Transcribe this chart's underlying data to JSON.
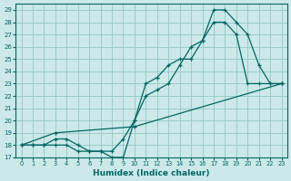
{
  "xlabel": "Humidex (Indice chaleur)",
  "bg_color": "#cce8e8",
  "grid_color": "#99cccc",
  "line_color": "#006666",
  "xlim": [
    -0.5,
    23.5
  ],
  "ylim": [
    17,
    29.5
  ],
  "yticks": [
    17,
    18,
    19,
    20,
    21,
    22,
    23,
    24,
    25,
    26,
    27,
    28,
    29
  ],
  "xticks": [
    0,
    1,
    2,
    3,
    4,
    5,
    6,
    7,
    8,
    9,
    10,
    11,
    12,
    13,
    14,
    15,
    16,
    17,
    18,
    19,
    20,
    21,
    22,
    23
  ],
  "line1_x": [
    0,
    1,
    2,
    3,
    4,
    5,
    6,
    7,
    8,
    9,
    10,
    11,
    12,
    13,
    14,
    15,
    16,
    17,
    18,
    19,
    20,
    21,
    22,
    23
  ],
  "line1_y": [
    18,
    18,
    18,
    18,
    18,
    17.5,
    17.5,
    17.5,
    17,
    17,
    20,
    22,
    22.5,
    23,
    24.5,
    26,
    26.5,
    28,
    28,
    27,
    23,
    23,
    23,
    23
  ],
  "line2_x": [
    0,
    1,
    2,
    3,
    4,
    5,
    6,
    7,
    8,
    9,
    10,
    11,
    12,
    13,
    14,
    15,
    16,
    17,
    18,
    19,
    20,
    21,
    22,
    23
  ],
  "line2_y": [
    18,
    18,
    18,
    18.5,
    18.5,
    18,
    17.5,
    17.5,
    17.5,
    18.5,
    20,
    23,
    23.5,
    24.5,
    25,
    25,
    26.5,
    29,
    29,
    28,
    27,
    24.5,
    23,
    23
  ],
  "line3_x": [
    0,
    3,
    10,
    23
  ],
  "line3_y": [
    18,
    19,
    19.5,
    23
  ]
}
